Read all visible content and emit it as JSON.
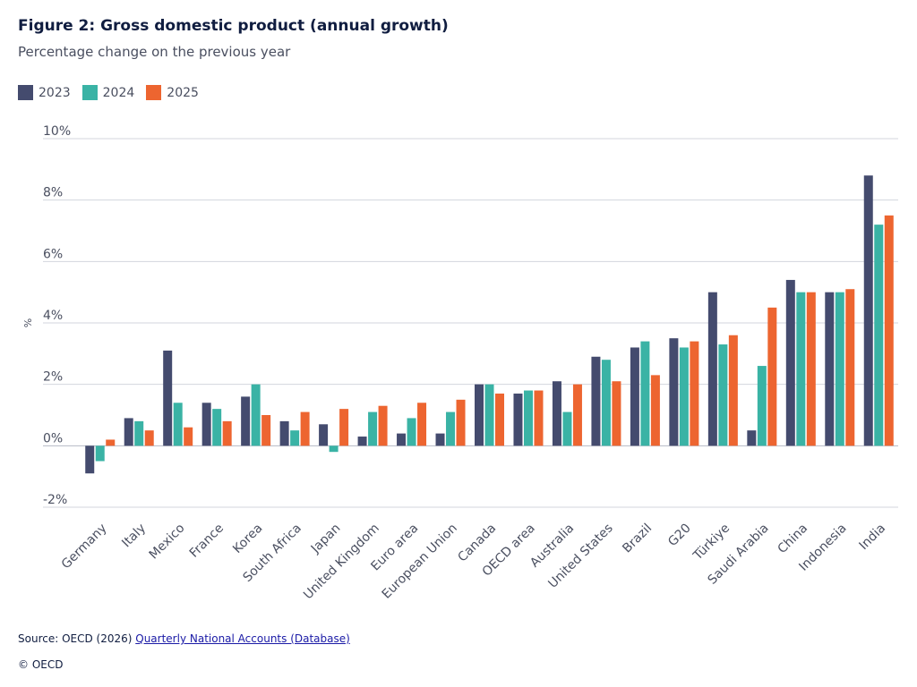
{
  "header": {
    "title": "Figure 2: Gross domestic product (annual growth)",
    "subtitle": "Percentage change on the previous year"
  },
  "legend": [
    {
      "label": "2023",
      "color": "#444b6e"
    },
    {
      "label": "2024",
      "color": "#3ab3a5"
    },
    {
      "label": "2025",
      "color": "#ed6530"
    }
  ],
  "chart_data": {
    "type": "bar",
    "title": "Figure 2: Gross domestic product (annual growth)",
    "subtitle": "Percentage change on the previous year",
    "ylabel": "%",
    "xlabel": "",
    "ylim": [
      -2,
      10
    ],
    "yticks": [
      -2,
      0,
      2,
      4,
      6,
      8,
      10
    ],
    "ytick_labels": [
      "-2%",
      "0%",
      "2%",
      "4%",
      "6%",
      "8%",
      "10%"
    ],
    "grid": true,
    "legend_position": "top-left",
    "categories": [
      "Germany",
      "Italy",
      "Mexico",
      "France",
      "Korea",
      "South Africa",
      "Japan",
      "United Kingdom",
      "Euro area",
      "European Union",
      "Canada",
      "OECD area",
      "Australia",
      "United States",
      "Brazil",
      "G20",
      "Türkiye",
      "Saudi Arabia",
      "China",
      "Indonesia",
      "India"
    ],
    "series": [
      {
        "name": "2023",
        "color": "#444b6e",
        "values": [
          -0.9,
          0.9,
          3.1,
          1.4,
          1.6,
          0.8,
          0.7,
          0.3,
          0.4,
          0.4,
          2.0,
          1.7,
          2.1,
          2.9,
          3.2,
          3.5,
          5.0,
          0.5,
          5.4,
          5.0,
          8.8
        ]
      },
      {
        "name": "2024",
        "color": "#3ab3a5",
        "values": [
          -0.5,
          0.8,
          1.4,
          1.2,
          2.0,
          0.5,
          -0.2,
          1.1,
          0.9,
          1.1,
          2.0,
          1.8,
          1.1,
          2.8,
          3.4,
          3.2,
          3.3,
          2.6,
          5.0,
          5.0,
          7.2
        ]
      },
      {
        "name": "2025",
        "color": "#ed6530",
        "values": [
          0.2,
          0.5,
          0.6,
          0.8,
          1.0,
          1.1,
          1.2,
          1.3,
          1.4,
          1.5,
          1.7,
          1.8,
          2.0,
          2.1,
          2.3,
          3.4,
          3.6,
          4.5,
          5.0,
          5.1,
          7.5
        ]
      }
    ]
  },
  "footer": {
    "source_prefix": "Source: OECD (2026) ",
    "source_link": "Quarterly National Accounts (Database)",
    "copyright": "© OECD"
  }
}
